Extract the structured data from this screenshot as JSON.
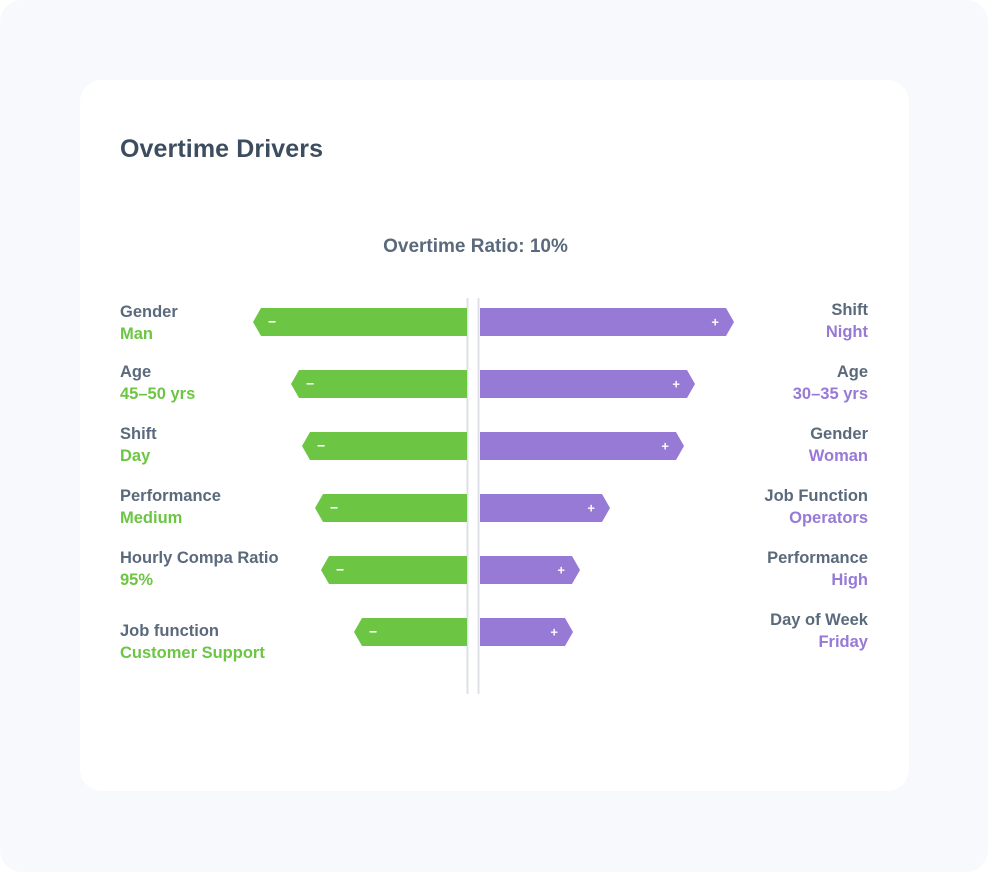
{
  "card": {
    "title": "Overtime Drivers"
  },
  "chart_data": {
    "type": "bar",
    "subtitle": "Overtime Ratio: 10%",
    "colors": {
      "negative": "#6cc644",
      "positive": "#9779d6",
      "axis": "#dde1e7",
      "label": "#5a6a7c"
    },
    "negative_drivers": [
      {
        "factor": "Gender",
        "value": "Man",
        "magnitude": 214,
        "sign": "−"
      },
      {
        "factor": "Age",
        "value": "45–50 yrs",
        "magnitude": 176,
        "sign": "−"
      },
      {
        "factor": "Shift",
        "value": "Day",
        "magnitude": 165,
        "sign": "−"
      },
      {
        "factor": "Performance",
        "value": "Medium",
        "magnitude": 152,
        "sign": "−"
      },
      {
        "factor": "Hourly Compa Ratio",
        "value": "95%",
        "magnitude": 146,
        "sign": "−"
      },
      {
        "factor": "Job function",
        "value": "Customer Support",
        "magnitude": 113,
        "sign": "−"
      }
    ],
    "positive_drivers": [
      {
        "factor": "Shift",
        "value": "Night",
        "magnitude": 254,
        "sign": "+"
      },
      {
        "factor": "Age",
        "value": "30–35 yrs",
        "magnitude": 215,
        "sign": "+"
      },
      {
        "factor": "Gender",
        "value": "Woman",
        "magnitude": 204,
        "sign": "+"
      },
      {
        "factor": "Job Function",
        "value": "Operators",
        "magnitude": 130,
        "sign": "+"
      },
      {
        "factor": "Performance",
        "value": "High",
        "magnitude": 100,
        "sign": "+"
      },
      {
        "factor": "Day of Week",
        "value": "Friday",
        "magnitude": 93,
        "sign": "+"
      }
    ]
  }
}
